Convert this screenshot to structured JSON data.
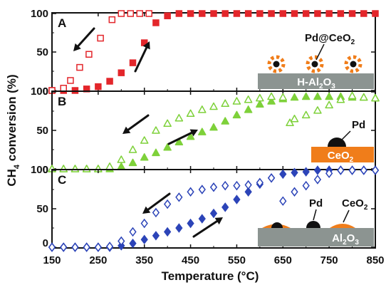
{
  "figure": {
    "xlabel": "Temperature (°C)",
    "ylabel_main": "CH",
    "ylabel_sub": "4",
    "ylabel_rest": " conversion (%)"
  },
  "chart_data": {
    "type": "scatter",
    "xlabel": "Temperature (°C)",
    "ylabel": "CH4 conversion (%)",
    "xlim": [
      150,
      850
    ],
    "x_ticks": [
      "150",
      "250",
      "350",
      "450",
      "550",
      "650",
      "750",
      "850"
    ],
    "grid": false,
    "panels": [
      {
        "letter": "A",
        "ylim": [
          0,
          100
        ],
        "y_ticks": [
          "0",
          "50",
          "100"
        ],
        "color": "#e3262b",
        "marker": "square",
        "inset": {
          "particle_label": "Pd@CeO",
          "particle_sub": "2",
          "support_label": "H-Al",
          "support_sub1": "2",
          "support_mid": "O",
          "support_sub2": "3"
        },
        "series": [
          {
            "direction": "heating",
            "marker_fill": "filled",
            "x": [
              150,
              175,
              200,
              225,
              250,
              275,
              300,
              325,
              350,
              375,
              400,
              425,
              450,
              475,
              500,
              525,
              550,
              575,
              600,
              625,
              650,
              675,
              700,
              725,
              750,
              775,
              800,
              825,
              850
            ],
            "y": [
              0,
              0,
              0,
              2,
              5,
              12,
              23,
              36,
              62,
              88,
              97,
              100,
              100,
              100,
              100,
              100,
              100,
              100,
              100,
              100,
              100,
              100,
              100,
              100,
              100,
              100,
              100,
              100,
              100
            ]
          },
          {
            "direction": "cooling",
            "marker_fill": "open",
            "x": [
              150,
              175,
              190,
              210,
              230,
              255,
              280,
              300,
              320,
              340,
              360
            ],
            "y": [
              0,
              3,
              13,
              30,
              47,
              68,
              92,
              100,
              100,
              100,
              100
            ]
          }
        ]
      },
      {
        "letter": "B",
        "ylim": [
          0,
          100
        ],
        "y_ticks": [
          "0",
          "50",
          "100"
        ],
        "color": "#7ed13a",
        "marker": "triangle",
        "inset": {
          "particle_label": "Pd",
          "support_label": "CeO",
          "support_sub1": "2"
        },
        "series": [
          {
            "direction": "heating",
            "marker_fill": "filled",
            "x": [
              150,
              175,
              200,
              225,
              250,
              275,
              300,
              325,
              350,
              375,
              400,
              425,
              450,
              475,
              500,
              525,
              550,
              575,
              600,
              625,
              650,
              675,
              700,
              725,
              750,
              775,
              800,
              825,
              850
            ],
            "y": [
              0,
              0,
              0,
              0,
              0,
              0,
              3,
              8,
              15,
              21,
              28,
              35,
              42,
              48,
              54,
              62,
              70,
              77,
              84,
              88,
              91,
              93,
              94,
              94,
              94,
              94,
              93,
              93,
              92
            ]
          },
          {
            "direction": "cooling",
            "marker_fill": "open",
            "x": [
              150,
              175,
              200,
              225,
              250,
              275,
              300,
              325,
              350,
              375,
              400,
              425,
              450,
              475,
              500,
              525,
              550,
              575,
              600,
              625,
              650,
              665,
              675,
              700,
              725,
              750,
              775,
              800,
              825,
              850
            ],
            "y": [
              0,
              0,
              0,
              0,
              0,
              3,
              12,
              25,
              37,
              50,
              59,
              66,
              72,
              77,
              81,
              85,
              88,
              90,
              92,
              94,
              93,
              60,
              65,
              70,
              76,
              83,
              90,
              95,
              93,
              92
            ]
          }
        ]
      },
      {
        "letter": "C",
        "ylim": [
          0,
          100
        ],
        "y_ticks": [
          "0",
          "50",
          "100"
        ],
        "color": "#2c44b8",
        "marker": "diamond",
        "inset": {
          "particle_label": "Pd",
          "ceo_label": "CeO",
          "ceo_sub": "2",
          "support_label": "Al",
          "support_sub1": "2",
          "support_mid": "O",
          "support_sub2": "3"
        },
        "series": [
          {
            "direction": "heating",
            "marker_fill": "filled",
            "x": [
              150,
              175,
              200,
              225,
              250,
              275,
              300,
              325,
              350,
              375,
              400,
              425,
              450,
              475,
              500,
              525,
              550,
              575,
              600,
              625,
              650,
              675,
              700,
              725,
              750,
              775,
              800,
              825,
              850
            ],
            "y": [
              0,
              0,
              0,
              0,
              0,
              0,
              2,
              5,
              10,
              15,
              20,
              25,
              31,
              37,
              44,
              52,
              62,
              72,
              82,
              90,
              95,
              97,
              98,
              100,
              100,
              100,
              100,
              100,
              100
            ]
          },
          {
            "direction": "cooling",
            "marker_fill": "open",
            "x": [
              150,
              175,
              200,
              225,
              250,
              275,
              300,
              325,
              350,
              375,
              400,
              425,
              450,
              475,
              500,
              525,
              550,
              575,
              600,
              625,
              650,
              675,
              700,
              725,
              750,
              775,
              800,
              825,
              850
            ],
            "y": [
              0,
              0,
              0,
              0,
              0,
              1,
              8,
              20,
              31,
              45,
              56,
              65,
              72,
              75,
              78,
              80,
              80,
              81,
              84,
              90,
              60,
              72,
              80,
              88,
              96,
              100,
              100,
              100,
              100
            ]
          }
        ]
      }
    ]
  }
}
